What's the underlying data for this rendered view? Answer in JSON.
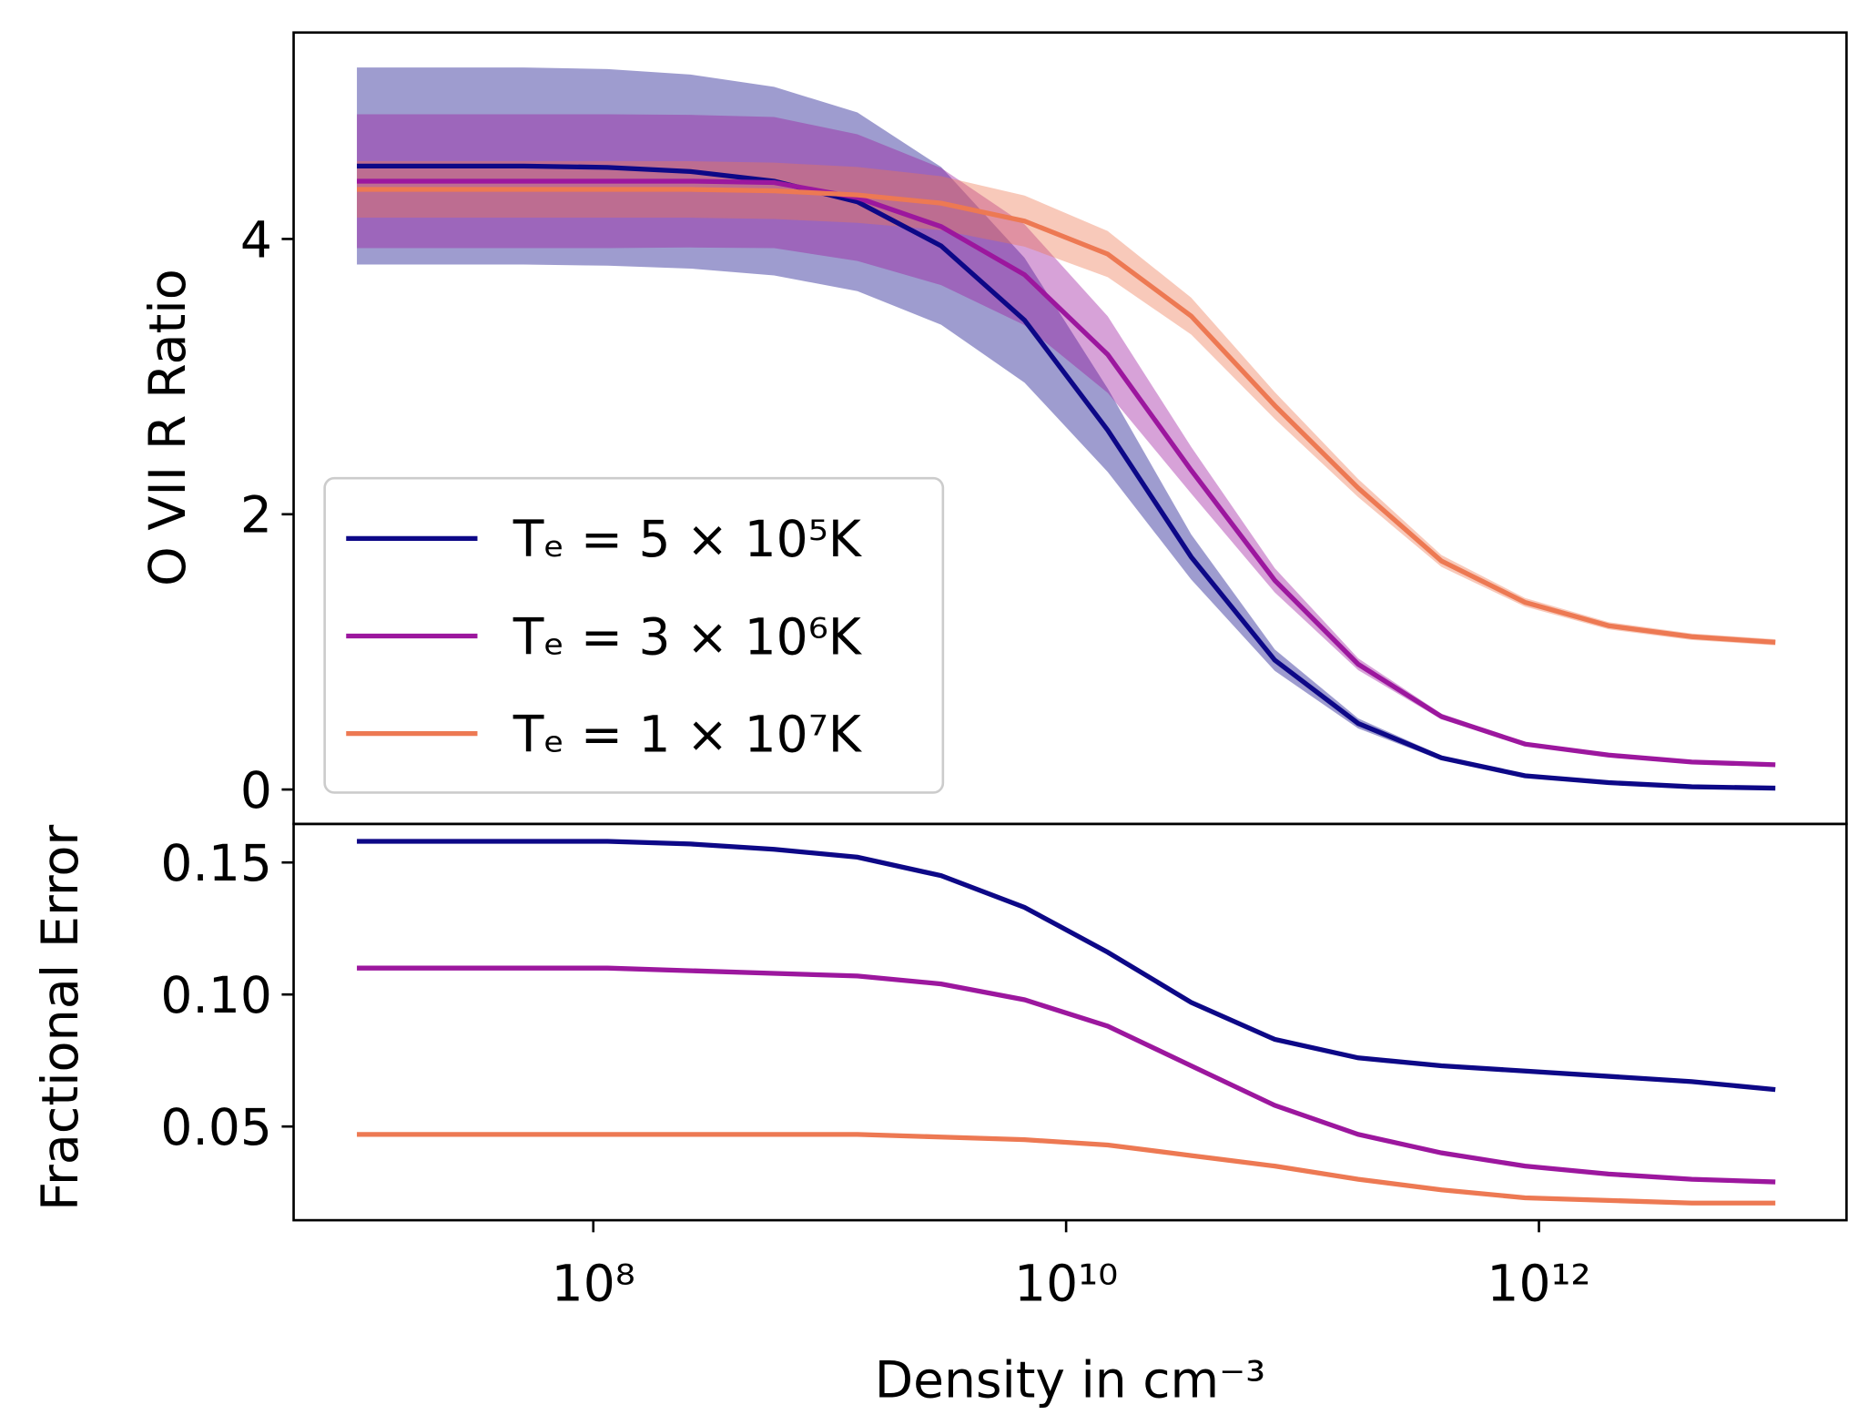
{
  "chart_data": [
    {
      "type": "line",
      "ylabel": "O VII R Ratio",
      "xscale": "log",
      "x": [
        10000000.0,
        22500000.0,
        50800000.0,
        115000000.0,
        258000000.0,
        582000000.0,
        1310000000.0,
        2960000000.0,
        6670000000.0,
        15000000000.0,
        33800000000.0,
        76300000000.0,
        172000000000.0,
        387000000000.0,
        873000000000.0,
        1970000000000.0,
        4430000000000.0,
        10000000000000.0
      ],
      "series": [
        {
          "name": "Tₑ = 5 × 10⁵K",
          "color": "#0d0887",
          "values": [
            4.53,
            4.53,
            4.53,
            4.52,
            4.49,
            4.42,
            4.27,
            3.95,
            3.41,
            2.61,
            1.69,
            0.94,
            0.48,
            0.23,
            0.1,
            0.05,
            0.02,
            0.01
          ]
        },
        {
          "name": "Tₑ = 3 × 10⁶K",
          "color": "#9c179e",
          "values": [
            4.42,
            4.42,
            4.42,
            4.42,
            4.42,
            4.41,
            4.3,
            4.09,
            3.74,
            3.16,
            2.32,
            1.52,
            0.91,
            0.53,
            0.33,
            0.25,
            0.2,
            0.18
          ]
        },
        {
          "name": "Tₑ = 1 × 10⁷K",
          "color": "#ed7953",
          "values": [
            4.36,
            4.36,
            4.36,
            4.36,
            4.36,
            4.35,
            4.32,
            4.26,
            4.13,
            3.89,
            3.44,
            2.79,
            2.19,
            1.66,
            1.36,
            1.19,
            1.11,
            1.07
          ]
        }
      ],
      "xlim": [
        5400000.0,
        20000000000000.0
      ],
      "ylim": [
        -0.25,
        5.5
      ],
      "yticks": [
        0,
        2,
        4
      ],
      "legend": "lower left"
    },
    {
      "type": "line",
      "ylabel": "Fractional Error",
      "xlabel": "Density in cm⁻³",
      "xscale": "log",
      "x": [
        10000000.0,
        22500000.0,
        50800000.0,
        115000000.0,
        258000000.0,
        582000000.0,
        1310000000.0,
        2960000000.0,
        6670000000.0,
        15000000000.0,
        33800000000.0,
        76300000000.0,
        172000000000.0,
        387000000000.0,
        873000000000.0,
        1970000000000.0,
        4430000000000.0,
        10000000000000.0
      ],
      "series": [
        {
          "color": "#0d0887",
          "values": [
            0.158,
            0.158,
            0.158,
            0.158,
            0.157,
            0.155,
            0.152,
            0.145,
            0.133,
            0.116,
            0.097,
            0.083,
            0.076,
            0.073,
            0.071,
            0.069,
            0.067,
            0.064
          ]
        },
        {
          "color": "#9c179e",
          "values": [
            0.11,
            0.11,
            0.11,
            0.11,
            0.109,
            0.108,
            0.107,
            0.104,
            0.098,
            0.088,
            0.073,
            0.058,
            0.047,
            0.04,
            0.035,
            0.032,
            0.03,
            0.029
          ]
        },
        {
          "color": "#ed7953",
          "values": [
            0.047,
            0.047,
            0.047,
            0.047,
            0.047,
            0.047,
            0.047,
            0.046,
            0.045,
            0.043,
            0.039,
            0.035,
            0.03,
            0.026,
            0.023,
            0.022,
            0.021,
            0.021
          ]
        }
      ],
      "xlim": [
        5400000.0,
        20000000000000.0
      ],
      "ylim": [
        0.0145,
        0.1646
      ],
      "yticks": [
        0.05,
        {
          "value": 0.1,
          "label": "0.10"
        },
        0.15
      ],
      "xticks": [
        {
          "value": 100000000.0,
          "label": "10⁸"
        },
        {
          "value": 10000000000.0,
          "label": "10¹⁰"
        },
        {
          "value": 1000000000000.0,
          "label": "10¹²"
        }
      ]
    }
  ]
}
